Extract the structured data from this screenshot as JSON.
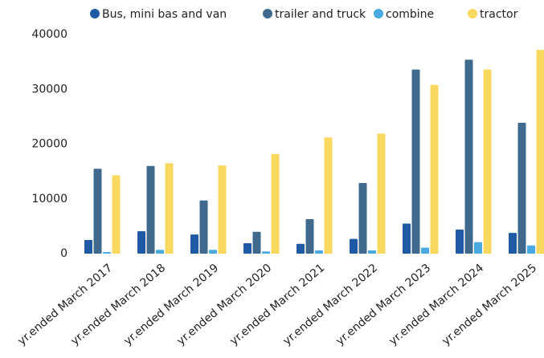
{
  "chart_data": {
    "type": "bar",
    "categories": [
      "yr.ended March 2017",
      "yr.ended March 2018",
      "yr.ended March 2019",
      "yr.ended March 2020",
      "yr.ended March 2021",
      "yr.ended March 2022",
      "yr.ended March 2023",
      "yr.ended March 2024",
      "yr.ended March 2025"
    ],
    "series": [
      {
        "name": "Bus, mini bas and van",
        "color": "#1f5aa6",
        "values": [
          2500,
          4100,
          3500,
          1900,
          1800,
          2700,
          5500,
          4400,
          3800
        ]
      },
      {
        "name": "trailer and truck",
        "color": "#3f6a8e",
        "values": [
          15500,
          16000,
          9700,
          4000,
          6300,
          12900,
          33600,
          35400,
          23900
        ]
      },
      {
        "name": "combine",
        "color": "#4ba9e2",
        "values": [
          300,
          700,
          700,
          400,
          600,
          600,
          1100,
          2100,
          1500
        ]
      },
      {
        "name": "tractor",
        "color": "#f8d85e",
        "values": [
          14300,
          16500,
          16100,
          18200,
          21200,
          21900,
          30800,
          33600,
          37200
        ]
      }
    ],
    "ylim": [
      0,
      40000
    ],
    "yticks": [
      0,
      10000,
      20000,
      30000,
      40000
    ],
    "grid": false
  }
}
